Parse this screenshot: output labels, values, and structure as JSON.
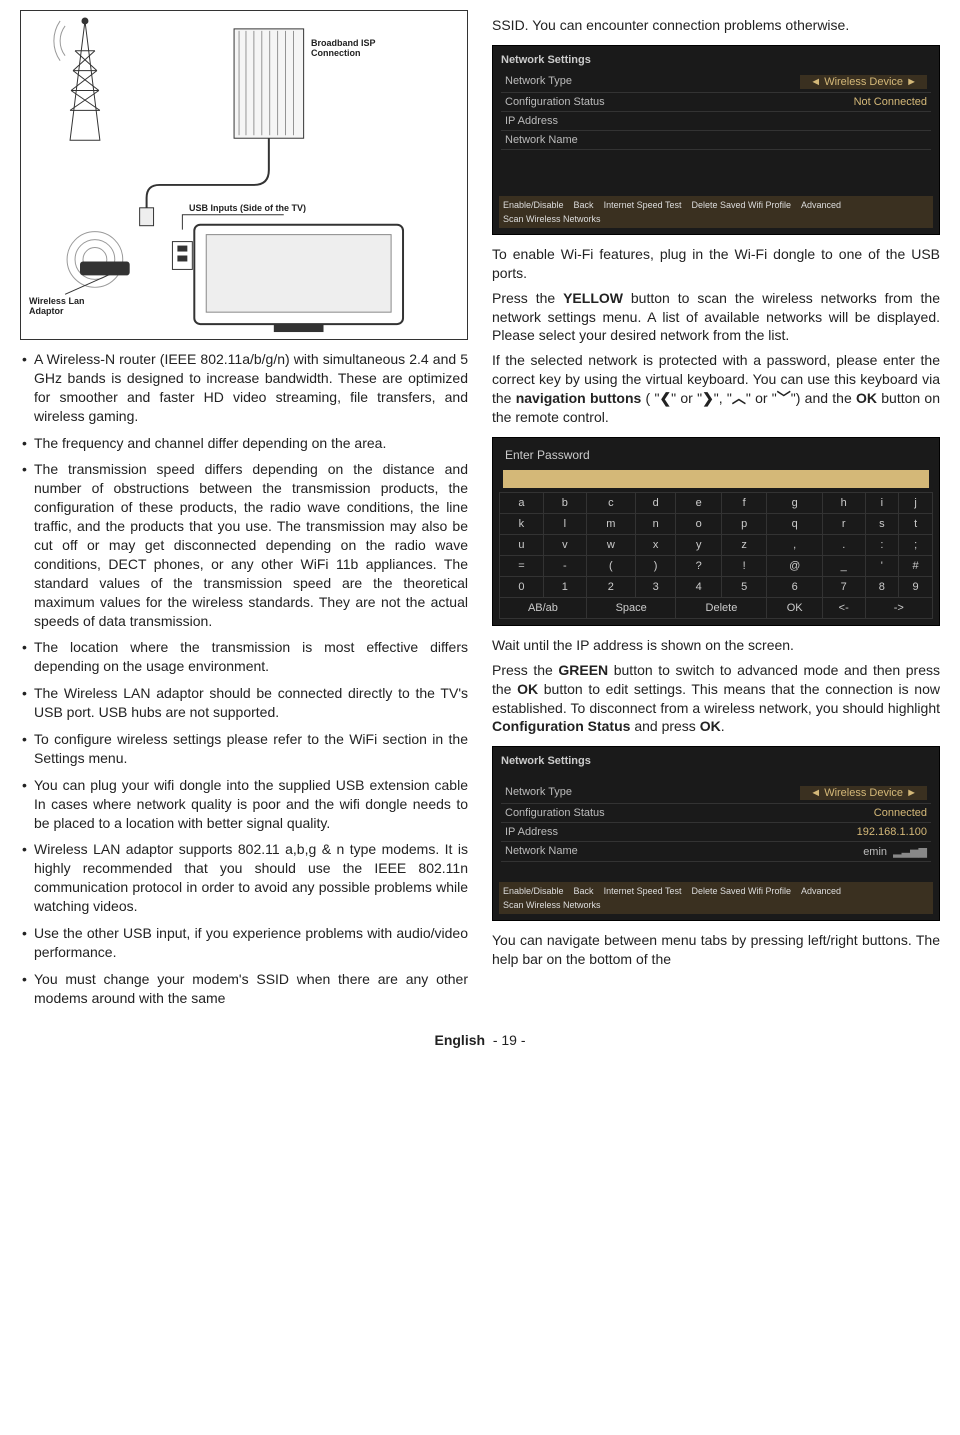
{
  "diagram": {
    "label_isp": "Broadband ISP\nConnection",
    "label_usb": "USB Inputs (Side of the TV)",
    "label_wlan": "Wireless Lan\nAdaptor"
  },
  "left": {
    "b1": "A Wireless-N router (IEEE 802.11a/b/g/n) with simultaneous 2.4 and 5 GHz bands is designed to increase bandwidth. These are optimized for smoother and faster HD video streaming, file transfers, and wireless gaming.",
    "b2": "The frequency and channel differ depending on the area.",
    "b3": "The transmission speed differs depending on the distance and number of obstructions between the transmission products, the configuration of these products, the radio wave conditions, the line traffic, and the products that you use. The transmission may also be cut off or may get disconnected depending on the radio wave conditions, DECT phones, or any other WiFi 11b appliances. The standard values of the transmission speed are the theoretical maximum values for the wireless standards. They are not the actual speeds of data transmission.",
    "b4": "The location where the transmission is most effective differs depending on the usage environment.",
    "b5": "The Wireless LAN adaptor should be connected directly to the TV's USB port. USB hubs are not supported.",
    "b6": "To configure wireless settings please refer to the WiFi section in the Settings menu.",
    "b7": "You can plug your wifi dongle into the supplied USB extension cable In cases where network quality is poor and the wifi dongle needs to be placed to a location with better signal quality.",
    "b8": "Wireless LAN adaptor supports 802.11 a,b,g & n type modems. It is highly recommended that you should use the IEEE 802.11n communication protocol in order to avoid any possible problems while watching videos.",
    "b9": "Use the other USB input, if you experience problems with audio/video performance.",
    "b10": "You must change your modem's SSID when there are any other modems around with the same"
  },
  "right": {
    "top": "SSID. You can encounter connection problems otherwise.",
    "p_enable": "To enable Wi-Fi features, plug in the Wi-Fi dongle to one of the USB ports.",
    "p_yellow_pre": "Press the ",
    "p_yellow_b": "YELLOW",
    "p_yellow_post": " button to scan the wireless networks from the network settings menu. A list of available networks will be displayed. Please select your desired network from the list.",
    "p_protected_1": "If the selected network is protected with a password, please enter the correct key by using the virtual keyboard. You can use this keyboard via the ",
    "p_protected_nav": "navigation buttons",
    "p_protected_2": " ( \"",
    "nav_l": "❮",
    "p_or1": "\" or \"",
    "nav_r": "❯",
    "p_or2": "\", \"",
    "nav_u": "︿",
    "p_or3": "\" or \"",
    "nav_d": "﹀",
    "p_protected_3": "\") and the ",
    "ok": "OK",
    "p_protected_4": " button on the remote control.",
    "p_wait": "Wait until the IP address is shown on the screen.",
    "p_green_pre": "Press the ",
    "p_green_b": "GREEN",
    "p_green_mid1": " button to switch to advanced mode and then press the ",
    "p_green_ok": "OK",
    "p_green_mid2": " button to edit settings. This means that the connection is now established. To disconnect from a wireless network, you should highlight ",
    "p_green_cs": "Configuration Status",
    "p_green_mid3": " and press ",
    "p_green_ok2": "OK",
    "p_green_end": ".",
    "p_nav": "You can navigate between menu tabs by pressing left/right buttons. The help bar on the bottom of the"
  },
  "shot1": {
    "title": "Network Settings",
    "r1k": "Network Type",
    "r1v": "Wireless Device",
    "r2k": "Configuration Status",
    "r2v": "Not Connected",
    "r3k": "IP Address",
    "r3v": "",
    "r4k": "Network Name",
    "r4v": "",
    "f1": "Enable/Disable",
    "f2": "Back",
    "f3": "Internet Speed Test",
    "f4": "Delete Saved Wifi Profile",
    "f5": "Advanced",
    "f6": "Scan Wireless Networks"
  },
  "kbd": {
    "title": "Enter Password",
    "rows": [
      [
        "a",
        "b",
        "c",
        "d",
        "e",
        "f",
        "g",
        "h",
        "i",
        "j"
      ],
      [
        "k",
        "l",
        "m",
        "n",
        "o",
        "p",
        "q",
        "r",
        "s",
        "t"
      ],
      [
        "u",
        "v",
        "w",
        "x",
        "y",
        "z",
        ",",
        ".",
        ":",
        ";"
      ],
      [
        "=",
        "-",
        "(",
        ")",
        "?",
        "!",
        "@",
        "_",
        "'",
        "#"
      ],
      [
        "0",
        "1",
        "2",
        "3",
        "4",
        "5",
        "6",
        "7",
        "8",
        "9"
      ]
    ],
    "bottom": [
      "AB/ab",
      "Space",
      "Delete",
      "OK",
      "<-",
      "->"
    ]
  },
  "shot2": {
    "title": "Network Settings",
    "r1k": "Network Type",
    "r1v": "Wireless Device",
    "r2k": "Configuration Status",
    "r2v": "Connected",
    "r3k": "IP Address",
    "r3v": "192.168.1.100",
    "r4k": "Network Name",
    "r4v": "emin",
    "f1": "Enable/Disable",
    "f2": "Back",
    "f3": "Internet Speed Test",
    "f4": "Delete Saved Wifi Profile",
    "f5": "Advanced",
    "f6": "Scan Wireless Networks"
  },
  "footer": {
    "lang": "English",
    "page": "- 19 -"
  }
}
